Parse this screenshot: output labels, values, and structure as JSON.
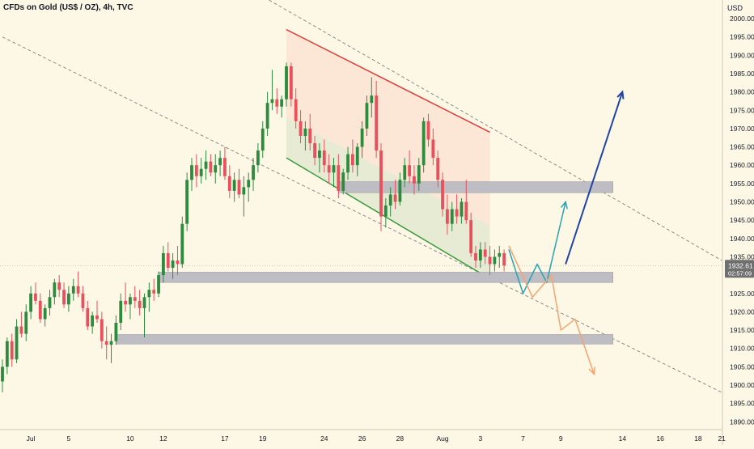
{
  "header": {
    "symbol": "CFDs on Gold (US$ / OZ), 4h, TVC",
    "currency": "USD"
  },
  "price_tag": {
    "price": "1932.61",
    "countdown": "02:57:09"
  },
  "colors": {
    "background": "#fdf8e6",
    "bull": "#2e8b3e",
    "bear": "#e8505b",
    "zone": "#bdbdc3",
    "channel_upper": "#e33b3b",
    "channel_lower": "#3a9a3a",
    "projection_blue": "#1f44a8",
    "projection_teal": "#27a3b3",
    "projection_orange": "#f4a470"
  },
  "chart_data": {
    "type": "candlestick",
    "y_axis": {
      "range": [
        1888,
        2004
      ],
      "ticks": [
        "1890.00",
        "1895.00",
        "1900.00",
        "1905.00",
        "1910.00",
        "1915.00",
        "1920.00",
        "1925.00",
        "1930.00",
        "1935.00",
        "1940.00",
        "1945.00",
        "1950.00",
        "1955.00",
        "1960.00",
        "1965.00",
        "1970.00",
        "1975.00",
        "1980.00",
        "1985.00",
        "1990.00",
        "1995.00",
        "2000.00"
      ]
    },
    "x_axis": {
      "ticks": [
        {
          "label": "Jul",
          "bar": 6
        },
        {
          "label": "5",
          "bar": 14
        },
        {
          "label": "10",
          "bar": 27
        },
        {
          "label": "12",
          "bar": 34
        },
        {
          "label": "17",
          "bar": 47
        },
        {
          "label": "19",
          "bar": 55
        },
        {
          "label": "24",
          "bar": 68
        },
        {
          "label": "26",
          "bar": 76
        },
        {
          "label": "28",
          "bar": 84
        },
        {
          "label": "Aug",
          "bar": 93
        },
        {
          "label": "3",
          "bar": 101
        },
        {
          "label": "7",
          "bar": 110
        },
        {
          "label": "9",
          "bar": 118
        },
        {
          "label": "14",
          "bar": 131
        },
        {
          "label": "16",
          "bar": 139
        },
        {
          "label": "18",
          "bar": 147
        },
        {
          "label": "21",
          "bar": 152
        }
      ]
    },
    "last_price": 1932.61,
    "candles": [
      [
        1901,
        1907,
        1898,
        1905
      ],
      [
        1905,
        1913,
        1903,
        1912
      ],
      [
        1912,
        1914,
        1905,
        1907
      ],
      [
        1907,
        1918,
        1906,
        1916
      ],
      [
        1916,
        1920,
        1913,
        1914
      ],
      [
        1914,
        1922,
        1912,
        1920
      ],
      [
        1920,
        1927,
        1918,
        1925
      ],
      [
        1925,
        1928,
        1922,
        1923
      ],
      [
        1923,
        1925,
        1917,
        1918
      ],
      [
        1918,
        1922,
        1916,
        1921
      ],
      [
        1921,
        1926,
        1919,
        1924
      ],
      [
        1924,
        1929,
        1922,
        1928
      ],
      [
        1928,
        1930,
        1924,
        1926
      ],
      [
        1926,
        1928,
        1921,
        1922
      ],
      [
        1922,
        1927,
        1920,
        1925
      ],
      [
        1925,
        1929,
        1923,
        1927
      ],
      [
        1927,
        1931,
        1924,
        1925
      ],
      [
        1925,
        1927,
        1920,
        1921
      ],
      [
        1921,
        1923,
        1915,
        1916
      ],
      [
        1916,
        1920,
        1914,
        1919
      ],
      [
        1919,
        1923,
        1917,
        1918
      ],
      [
        1918,
        1920,
        1910,
        1912
      ],
      [
        1912,
        1916,
        1907,
        1911
      ],
      [
        1911,
        1914,
        1906,
        1912
      ],
      [
        1912,
        1919,
        1911,
        1917
      ],
      [
        1917,
        1925,
        1915,
        1923
      ],
      [
        1923,
        1928,
        1920,
        1922
      ],
      [
        1922,
        1925,
        1918,
        1924
      ],
      [
        1924,
        1927,
        1921,
        1923
      ],
      [
        1923,
        1926,
        1919,
        1921
      ],
      [
        1921,
        1925,
        1913,
        1924
      ],
      [
        1924,
        1928,
        1920,
        1926
      ],
      [
        1926,
        1929,
        1923,
        1925
      ],
      [
        1925,
        1931,
        1924,
        1930
      ],
      [
        1930,
        1938,
        1928,
        1936
      ],
      [
        1936,
        1939,
        1931,
        1932
      ],
      [
        1932,
        1936,
        1929,
        1934
      ],
      [
        1934,
        1938,
        1930,
        1933
      ],
      [
        1933,
        1946,
        1932,
        1944
      ],
      [
        1944,
        1958,
        1942,
        1956
      ],
      [
        1956,
        1962,
        1953,
        1960
      ],
      [
        1960,
        1963,
        1954,
        1957
      ],
      [
        1957,
        1962,
        1955,
        1959
      ],
      [
        1959,
        1964,
        1956,
        1961
      ],
      [
        1961,
        1963,
        1957,
        1958
      ],
      [
        1958,
        1963,
        1955,
        1960
      ],
      [
        1960,
        1964,
        1957,
        1962
      ],
      [
        1962,
        1965,
        1956,
        1957
      ],
      [
        1957,
        1960,
        1951,
        1953
      ],
      [
        1953,
        1958,
        1950,
        1956
      ],
      [
        1956,
        1959,
        1951,
        1952
      ],
      [
        1952,
        1957,
        1946,
        1954
      ],
      [
        1954,
        1958,
        1950,
        1956
      ],
      [
        1956,
        1962,
        1953,
        1960
      ],
      [
        1960,
        1966,
        1958,
        1964
      ],
      [
        1964,
        1972,
        1962,
        1970
      ],
      [
        1970,
        1980,
        1968,
        1977
      ],
      [
        1977,
        1986,
        1975,
        1978
      ],
      [
        1978,
        1981,
        1974,
        1976
      ],
      [
        1976,
        1979,
        1973,
        1978
      ],
      [
        1978,
        1988,
        1976,
        1987
      ],
      [
        1987,
        1988,
        1976,
        1978
      ],
      [
        1978,
        1981,
        1970,
        1972
      ],
      [
        1972,
        1975,
        1966,
        1968
      ],
      [
        1968,
        1972,
        1964,
        1970
      ],
      [
        1970,
        1974,
        1964,
        1966
      ],
      [
        1966,
        1968,
        1960,
        1962
      ],
      [
        1962,
        1966,
        1958,
        1964
      ],
      [
        1964,
        1967,
        1958,
        1960
      ],
      [
        1960,
        1963,
        1955,
        1958
      ],
      [
        1958,
        1962,
        1954,
        1960
      ],
      [
        1960,
        1963,
        1951,
        1953
      ],
      [
        1953,
        1959,
        1952,
        1958
      ],
      [
        1958,
        1965,
        1956,
        1963
      ],
      [
        1963,
        1967,
        1958,
        1960
      ],
      [
        1960,
        1966,
        1957,
        1965
      ],
      [
        1965,
        1972,
        1962,
        1970
      ],
      [
        1970,
        1979,
        1968,
        1977
      ],
      [
        1977,
        1984,
        1973,
        1979
      ],
      [
        1979,
        1983,
        1962,
        1964
      ],
      [
        1964,
        1966,
        1942,
        1946
      ],
      [
        1946,
        1951,
        1943,
        1949
      ],
      [
        1949,
        1954,
        1946,
        1952
      ],
      [
        1952,
        1956,
        1948,
        1950
      ],
      [
        1950,
        1958,
        1949,
        1956
      ],
      [
        1956,
        1962,
        1954,
        1960
      ],
      [
        1960,
        1964,
        1955,
        1957
      ],
      [
        1957,
        1960,
        1952,
        1955
      ],
      [
        1955,
        1962,
        1953,
        1960
      ],
      [
        1960,
        1973,
        1958,
        1972
      ],
      [
        1972,
        1974,
        1965,
        1967
      ],
      [
        1967,
        1970,
        1960,
        1962
      ],
      [
        1962,
        1964,
        1954,
        1956
      ],
      [
        1956,
        1958,
        1946,
        1948
      ],
      [
        1948,
        1952,
        1941,
        1944
      ],
      [
        1944,
        1950,
        1942,
        1948
      ],
      [
        1948,
        1952,
        1944,
        1946
      ],
      [
        1946,
        1951,
        1944,
        1950
      ],
      [
        1950,
        1956,
        1944,
        1945
      ],
      [
        1945,
        1947,
        1935,
        1936
      ],
      [
        1936,
        1938,
        1932,
        1934
      ],
      [
        1934,
        1939,
        1932,
        1937
      ],
      [
        1937,
        1939,
        1933,
        1935
      ],
      [
        1935,
        1938,
        1930,
        1933
      ],
      [
        1933,
        1937,
        1931,
        1935
      ],
      [
        1935,
        1938,
        1932,
        1936
      ],
      [
        1936,
        1937,
        1931,
        1932.61
      ]
    ],
    "zones": [
      {
        "top": 1955.5,
        "bottom": 1952.5,
        "from_bar": 71,
        "to_bar": 129
      },
      {
        "top": 1930.8,
        "bottom": 1928.0,
        "from_bar": 33,
        "to_bar": 129
      },
      {
        "top": 1913.8,
        "bottom": 1911.2,
        "from_bar": 24,
        "to_bar": 129
      }
    ],
    "channel": {
      "upper": {
        "from": [
          60,
          1997
        ],
        "to": [
          103,
          1969
        ]
      },
      "lower": {
        "from": [
          60,
          1962
        ],
        "to": [
          103,
          1929
        ]
      }
    },
    "trend_lines": [
      {
        "from": [
          0,
          1995
        ],
        "to": [
          152,
          1898
        ]
      },
      {
        "from": [
          47,
          2012
        ],
        "to": [
          152,
          1934
        ]
      }
    ],
    "projections": [
      {
        "name": "teal",
        "points": [
          [
            107,
            1937
          ],
          [
            110,
            1925
          ],
          [
            113,
            1933
          ],
          [
            115,
            1928
          ],
          [
            119,
            1950
          ]
        ]
      },
      {
        "name": "blue",
        "points": [
          [
            119,
            1933
          ],
          [
            131,
            1980
          ]
        ]
      },
      {
        "name": "orange",
        "points": [
          [
            107,
            1938
          ],
          [
            112,
            1924
          ],
          [
            116,
            1930
          ],
          [
            118,
            1915
          ],
          [
            121,
            1918
          ],
          [
            125,
            1903
          ]
        ]
      }
    ]
  }
}
